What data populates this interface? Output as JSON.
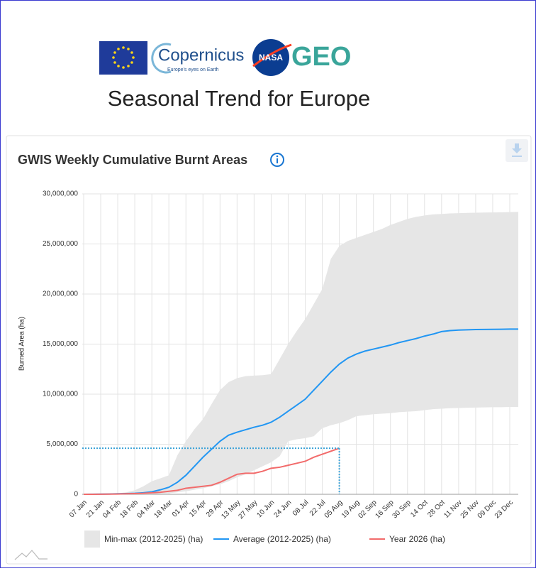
{
  "header": {
    "logos": {
      "copernicus": "Copernicus",
      "copernicus_tagline": "Europe's eyes on Earth",
      "nasa": "NASA",
      "geo": "GEO"
    },
    "title": "Seasonal Trend for Europe"
  },
  "chart_data": {
    "type": "line",
    "title": "GWIS Weekly Cumulative Burnt Areas",
    "y_label": "Burned Area (ha)",
    "categories": [
      "07 Jan",
      null,
      "21 Jan",
      null,
      "04 Feb",
      null,
      "18 Feb",
      null,
      "04 Mar",
      null,
      "18 Mar",
      null,
      "01 Apr",
      null,
      "15 Apr",
      null,
      "29 Apr",
      null,
      "13 May",
      null,
      "27 May",
      null,
      "10 Jun",
      null,
      "24 Jun",
      null,
      "08 Jul",
      null,
      "22 Jul",
      null,
      "05 Aug",
      null,
      "19 Aug",
      null,
      "02 Sep",
      null,
      "16 Sep",
      null,
      "30 Sep",
      null,
      "14 Oct",
      null,
      "28 Oct",
      null,
      "11 Nov",
      null,
      "25 Nov",
      null,
      "09 Dec",
      null,
      "23 Dec",
      null
    ],
    "ylim": [
      0,
      30000000
    ],
    "yticks": [
      0,
      {
        "value": 5000000,
        "label": "5,000,000"
      },
      {
        "value": 10000000,
        "label": "10,000,000"
      },
      {
        "value": 15000000,
        "label": "15,000,000"
      },
      {
        "value": 20000000,
        "label": "20,000,000"
      },
      {
        "value": 25000000,
        "label": "25,000,000"
      },
      {
        "value": 30000000,
        "label": "30,000,000"
      }
    ],
    "grid": true,
    "legend": "bottom",
    "series": [
      {
        "name": "Min-max (2012-2025) (ha)",
        "type": "range",
        "color": "#e6e6e6",
        "high": [
          0,
          0,
          20000,
          50000,
          100000,
          200000,
          400000,
          800000,
          1300000,
          1600000,
          1900000,
          3900000,
          5300000,
          6500000,
          7500000,
          9000000,
          10400000,
          11200000,
          11600000,
          11800000,
          11850000,
          11900000,
          12000000,
          13500000,
          15000000,
          16300000,
          17500000,
          19000000,
          20500000,
          23500000,
          24800000,
          25300000,
          25600000,
          25900000,
          26200000,
          26500000,
          26900000,
          27200000,
          27500000,
          27700000,
          27850000,
          27950000,
          28000000,
          28050000,
          28080000,
          28100000,
          28120000,
          28140000,
          28150000,
          28160000,
          28180000,
          28200000
        ],
        "low": [
          0,
          0,
          0,
          0,
          0,
          0,
          0,
          0,
          20000,
          50000,
          100000,
          200000,
          300000,
          450000,
          600000,
          800000,
          1000000,
          1300000,
          1700000,
          2000000,
          2400000,
          2800000,
          3200000,
          3800000,
          5300000,
          5500000,
          5600000,
          5800000,
          6600000,
          6900000,
          7100000,
          7400000,
          7800000,
          7900000,
          8000000,
          8050000,
          8100000,
          8200000,
          8250000,
          8300000,
          8400000,
          8500000,
          8550000,
          8600000,
          8620000,
          8640000,
          8660000,
          8680000,
          8700000,
          8700000,
          8720000,
          8720000
        ]
      },
      {
        "name": "Average (2012-2025) (ha)",
        "type": "line",
        "color": "#2196f3",
        "values": [
          0,
          10000,
          20000,
          30000,
          50000,
          70000,
          100000,
          150000,
          250000,
          450000,
          700000,
          1200000,
          1900000,
          2800000,
          3700000,
          4500000,
          5300000,
          5900000,
          6200000,
          6450000,
          6700000,
          6900000,
          7200000,
          7700000,
          8300000,
          8900000,
          9500000,
          10400000,
          11300000,
          12200000,
          13000000,
          13600000,
          14000000,
          14300000,
          14500000,
          14700000,
          14900000,
          15150000,
          15350000,
          15550000,
          15800000,
          16000000,
          16250000,
          16350000,
          16400000,
          16430000,
          16450000,
          16460000,
          16470000,
          16480000,
          16500000,
          16500000
        ]
      },
      {
        "name": "Year 2026 (ha)",
        "type": "line",
        "color": "#f26b6b",
        "current_marker": true,
        "values": [
          0,
          0,
          10000,
          20000,
          30000,
          50000,
          70000,
          100000,
          150000,
          200000,
          300000,
          400000,
          600000,
          700000,
          800000,
          900000,
          1200000,
          1600000,
          2000000,
          2100000,
          2100000,
          2300000,
          2600000,
          2700000,
          2900000,
          3100000,
          3300000,
          3700000,
          4000000,
          4300000,
          4600000,
          null,
          null,
          null,
          null,
          null,
          null,
          null,
          null,
          null,
          null,
          null,
          null,
          null,
          null,
          null,
          null,
          null,
          null,
          null,
          null,
          null
        ]
      }
    ]
  }
}
